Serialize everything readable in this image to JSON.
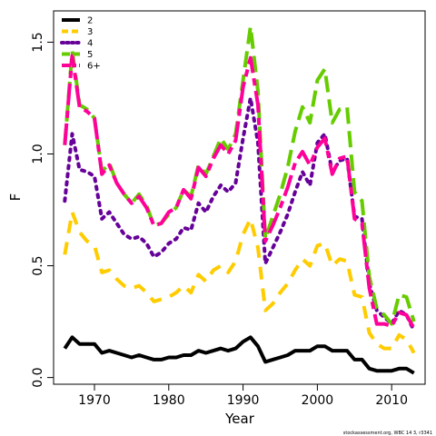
{
  "chart_data": {
    "type": "line",
    "xlabel": "Year",
    "ylabel": "F",
    "xlim": [
      1964.5,
      2014.5
    ],
    "ylim": [
      -0.03,
      1.64
    ],
    "x_ticks": [
      1970,
      1980,
      1990,
      2000,
      2010
    ],
    "x_tick_labels": [
      "1970",
      "1980",
      "1990",
      "2000",
      "2010"
    ],
    "y_ticks": [
      0.0,
      0.5,
      1.0,
      1.5
    ],
    "y_tick_labels": [
      "0.0",
      "0.5",
      "1.0",
      "1.5"
    ],
    "legend_position": "top-left",
    "grid": false,
    "x": [
      1966,
      1967,
      1968,
      1969,
      1970,
      1971,
      1972,
      1973,
      1974,
      1975,
      1976,
      1977,
      1978,
      1979,
      1980,
      1981,
      1982,
      1983,
      1984,
      1985,
      1986,
      1987,
      1988,
      1989,
      1990,
      1991,
      1992,
      1993,
      1994,
      1995,
      1996,
      1997,
      1998,
      1999,
      2000,
      2001,
      2002,
      2003,
      2004,
      2005,
      2006,
      2007,
      2008,
      2009,
      2010,
      2011,
      2012,
      2013
    ],
    "series": [
      {
        "name": "2",
        "color": "#000000",
        "style": "solid",
        "values": [
          0.13,
          0.18,
          0.15,
          0.15,
          0.15,
          0.11,
          0.12,
          0.11,
          0.1,
          0.09,
          0.1,
          0.09,
          0.08,
          0.08,
          0.09,
          0.09,
          0.1,
          0.1,
          0.12,
          0.11,
          0.12,
          0.13,
          0.12,
          0.13,
          0.16,
          0.18,
          0.14,
          0.07,
          0.08,
          0.09,
          0.1,
          0.12,
          0.12,
          0.12,
          0.14,
          0.14,
          0.12,
          0.12,
          0.12,
          0.08,
          0.08,
          0.04,
          0.03,
          0.03,
          0.03,
          0.04,
          0.04,
          0.02
        ]
      },
      {
        "name": "3",
        "color": "#FFCC00",
        "style": "dashed",
        "values": [
          0.55,
          0.74,
          0.65,
          0.61,
          0.59,
          0.47,
          0.48,
          0.44,
          0.41,
          0.4,
          0.41,
          0.38,
          0.34,
          0.35,
          0.36,
          0.38,
          0.41,
          0.38,
          0.46,
          0.43,
          0.48,
          0.5,
          0.47,
          0.52,
          0.64,
          0.71,
          0.58,
          0.3,
          0.33,
          0.38,
          0.42,
          0.48,
          0.53,
          0.5,
          0.59,
          0.6,
          0.5,
          0.53,
          0.52,
          0.37,
          0.36,
          0.2,
          0.15,
          0.13,
          0.13,
          0.19,
          0.17,
          0.11
        ]
      },
      {
        "name": "4",
        "color": "#660099",
        "style": "dotted",
        "values": [
          0.79,
          1.09,
          0.93,
          0.92,
          0.9,
          0.71,
          0.74,
          0.69,
          0.64,
          0.62,
          0.63,
          0.6,
          0.54,
          0.56,
          0.6,
          0.62,
          0.67,
          0.66,
          0.78,
          0.74,
          0.81,
          0.86,
          0.83,
          0.87,
          1.07,
          1.25,
          1.05,
          0.51,
          0.58,
          0.65,
          0.73,
          0.83,
          0.92,
          0.86,
          1.05,
          1.09,
          0.92,
          0.97,
          0.98,
          0.72,
          0.71,
          0.42,
          0.3,
          0.27,
          0.24,
          0.3,
          0.28,
          0.21
        ]
      },
      {
        "name": "5",
        "color": "#66CC00",
        "style": "longdash",
        "values": [
          1.04,
          1.46,
          1.22,
          1.2,
          1.16,
          0.92,
          0.96,
          0.87,
          0.82,
          0.78,
          0.82,
          0.77,
          0.68,
          0.69,
          0.73,
          0.76,
          0.84,
          0.81,
          0.95,
          0.91,
          0.99,
          1.07,
          1.02,
          1.09,
          1.33,
          1.57,
          1.28,
          0.62,
          0.72,
          0.82,
          0.94,
          1.1,
          1.21,
          1.14,
          1.33,
          1.38,
          1.14,
          1.2,
          1.21,
          0.83,
          0.79,
          0.45,
          0.31,
          0.28,
          0.24,
          0.37,
          0.36,
          0.25
        ]
      },
      {
        "name": "6+",
        "color": "#FF0099",
        "style": "twodash",
        "values": [
          1.04,
          1.44,
          1.21,
          1.19,
          1.16,
          0.91,
          0.95,
          0.87,
          0.82,
          0.78,
          0.81,
          0.76,
          0.68,
          0.69,
          0.74,
          0.76,
          0.84,
          0.8,
          0.94,
          0.9,
          0.98,
          1.04,
          1.0,
          1.06,
          1.3,
          1.43,
          1.22,
          0.61,
          0.68,
          0.76,
          0.85,
          0.96,
          1.01,
          0.95,
          1.03,
          1.07,
          0.91,
          0.98,
          0.99,
          0.71,
          0.69,
          0.4,
          0.24,
          0.24,
          0.23,
          0.29,
          0.28,
          0.22
        ]
      }
    ],
    "footnote": "stockassessment.org,  WBC 14 3, r3341"
  }
}
